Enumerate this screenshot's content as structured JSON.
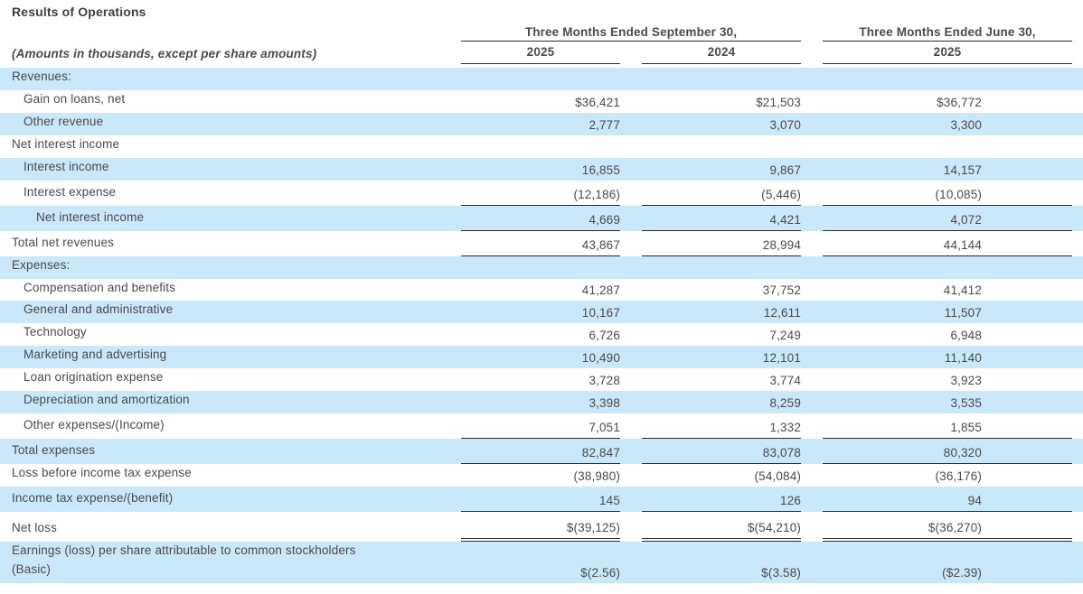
{
  "title": "Results of Operations",
  "note": "(Amounts in thousands, except per share amounts)",
  "header": {
    "groups": [
      {
        "label": "Three Months Ended September 30,",
        "span": 2
      },
      {
        "label": "Three Months Ended June 30,",
        "span": 1
      }
    ],
    "columns": [
      "2025",
      "2024",
      "2025"
    ]
  },
  "rows": [
    {
      "label": "Revenues:",
      "indent": 0,
      "values": [
        "",
        "",
        ""
      ],
      "rule": "none"
    },
    {
      "label": "Gain on loans, net",
      "indent": 1,
      "values": [
        "$36,421",
        "$21,503",
        "$36,772"
      ],
      "rule": "none"
    },
    {
      "label": "Other revenue",
      "indent": 1,
      "values": [
        "2,777",
        "3,070",
        "3,300"
      ],
      "rule": "none"
    },
    {
      "label": "Net interest income",
      "indent": 0,
      "values": [
        "",
        "",
        ""
      ],
      "rule": "none"
    },
    {
      "label": "Interest income",
      "indent": 1,
      "values": [
        "16,855",
        "9,867",
        "14,157"
      ],
      "rule": "none"
    },
    {
      "label": "Interest expense",
      "indent": 1,
      "values": [
        "(12,186)",
        "(5,446)",
        "(10,085)"
      ],
      "rule": "single"
    },
    {
      "label": "Net interest income",
      "indent": 2,
      "values": [
        "4,669",
        "4,421",
        "4,072"
      ],
      "rule": "single"
    },
    {
      "label": "Total net revenues",
      "indent": 0,
      "values": [
        "43,867",
        "28,994",
        "44,144"
      ],
      "rule": "single"
    },
    {
      "label": "Expenses:",
      "indent": 0,
      "values": [
        "",
        "",
        ""
      ],
      "rule": "none"
    },
    {
      "label": "Compensation and benefits",
      "indent": 1,
      "values": [
        "41,287",
        "37,752",
        "41,412"
      ],
      "rule": "none"
    },
    {
      "label": "General and administrative",
      "indent": 1,
      "values": [
        "10,167",
        "12,611",
        "11,507"
      ],
      "rule": "none"
    },
    {
      "label": "Technology",
      "indent": 1,
      "values": [
        "6,726",
        "7,249",
        "6,948"
      ],
      "rule": "none"
    },
    {
      "label": "Marketing and advertising",
      "indent": 1,
      "values": [
        "10,490",
        "12,101",
        "11,140"
      ],
      "rule": "none"
    },
    {
      "label": "Loan origination expense",
      "indent": 1,
      "values": [
        "3,728",
        "3,774",
        "3,923"
      ],
      "rule": "none"
    },
    {
      "label": "Depreciation and amortization",
      "indent": 1,
      "values": [
        "3,398",
        "8,259",
        "3,535"
      ],
      "rule": "none"
    },
    {
      "label": "Other expenses/(Income)",
      "indent": 1,
      "values": [
        "7,051",
        "1,332",
        "1,855"
      ],
      "rule": "single"
    },
    {
      "label": "Total expenses",
      "indent": 0,
      "values": [
        "82,847",
        "83,078",
        "80,320"
      ],
      "rule": "single"
    },
    {
      "label": "Loss before income tax expense",
      "indent": 0,
      "values": [
        "(38,980)",
        "(54,084)",
        "(36,176)"
      ],
      "rule": "none"
    },
    {
      "label": "Income tax expense/(benefit)",
      "indent": 0,
      "values": [
        "145",
        "126",
        "94"
      ],
      "rule": "single"
    },
    {
      "label": "Net loss",
      "indent": 0,
      "values": [
        "$(39,125)",
        "$(54,210)",
        "$(36,270)"
      ],
      "rule": "double"
    },
    {
      "label": "Earnings (loss) per share attributable to common stockholders\n(Basic)",
      "indent": 0,
      "values": [
        "$(2.56)",
        "$(3.58)",
        "($2.39)"
      ],
      "rule": "none"
    }
  ],
  "colors": {
    "stripe_blue": "#c9e9fa",
    "text": "#4a4a4a",
    "rule_line": "#2b2b2b"
  }
}
